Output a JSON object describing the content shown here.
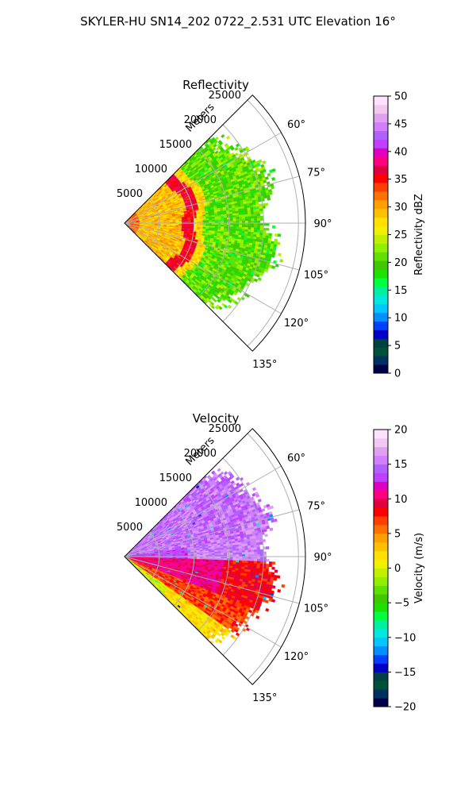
{
  "title": "SKYLER-HU  SN14_202  0722_2.531 UTC Elevation 16°",
  "chart_data": [
    {
      "type": "heatmap",
      "subtype": "polar-sector",
      "title": "Reflectivity",
      "radial_label": "Meters",
      "radial_ticks": [
        "5000",
        "10000",
        "15000",
        "20000",
        "25000"
      ],
      "radial_tick_values": [
        5000,
        10000,
        15000,
        20000,
        25000
      ],
      "r_max": 26000,
      "angle_ticks": [
        "60°",
        "75°",
        "90°",
        "105°",
        "120°",
        "135°"
      ],
      "angle_tick_values": [
        60,
        75,
        90,
        105,
        120,
        135
      ],
      "theta_range": [
        45,
        135
      ],
      "grid": true,
      "colorbar": {
        "label": "Reflectivity dBZ",
        "min": 0,
        "max": 50,
        "ticks": [
          "0",
          "5",
          "10",
          "15",
          "20",
          "25",
          "30",
          "35",
          "40",
          "45",
          "50"
        ],
        "tick_values": [
          0,
          5,
          10,
          15,
          20,
          25,
          30,
          35,
          40,
          45,
          50
        ],
        "colors": [
          "#00004a",
          "#003060",
          "#00503a",
          "#004040",
          "#0000c8",
          "#0040ff",
          "#0090ff",
          "#00c8ff",
          "#00e8e0",
          "#00f0a0",
          "#00ff40",
          "#20e000",
          "#40c800",
          "#60e000",
          "#90f000",
          "#c0f000",
          "#f0f000",
          "#ffe000",
          "#ffc000",
          "#ffa000",
          "#ff7000",
          "#ff4000",
          "#ff0000",
          "#e00040",
          "#ff0080",
          "#e000c0",
          "#c040ff",
          "#b060ff",
          "#d080ff",
          "#e0a0f0",
          "#f0c8f0",
          "#ffe0ff"
        ]
      },
      "field": "reflectivity"
    },
    {
      "type": "heatmap",
      "subtype": "polar-sector",
      "title": "Velocity",
      "radial_label": "Meters",
      "radial_ticks": [
        "5000",
        "10000",
        "15000",
        "20000",
        "25000"
      ],
      "radial_tick_values": [
        5000,
        10000,
        15000,
        20000,
        25000
      ],
      "r_max": 26000,
      "angle_ticks": [
        "60°",
        "75°",
        "90°",
        "105°",
        "120°",
        "135°"
      ],
      "angle_tick_values": [
        60,
        75,
        90,
        105,
        120,
        135
      ],
      "theta_range": [
        45,
        135
      ],
      "grid": true,
      "colorbar": {
        "label": "Velocity (m/s)",
        "min": -20,
        "max": 20,
        "ticks": [
          "−20",
          "−15",
          "−10",
          "−5",
          "0",
          "5",
          "10",
          "15",
          "20"
        ],
        "tick_values": [
          -20,
          -15,
          -10,
          -5,
          0,
          5,
          10,
          15,
          20
        ],
        "colors": [
          "#00004a",
          "#003060",
          "#00503a",
          "#004040",
          "#0000c8",
          "#0040ff",
          "#0090ff",
          "#00c8ff",
          "#00e8e0",
          "#00f0a0",
          "#00ff40",
          "#20e000",
          "#40c800",
          "#60e000",
          "#90f000",
          "#c0f000",
          "#f0f000",
          "#ffe000",
          "#ffc000",
          "#ffa000",
          "#ff7000",
          "#ff4000",
          "#ff0000",
          "#e00040",
          "#ff0080",
          "#e000c0",
          "#c040ff",
          "#b060ff",
          "#d080ff",
          "#e0a0f0",
          "#f0c8f0",
          "#ffe0ff"
        ]
      },
      "field": "velocity"
    }
  ]
}
